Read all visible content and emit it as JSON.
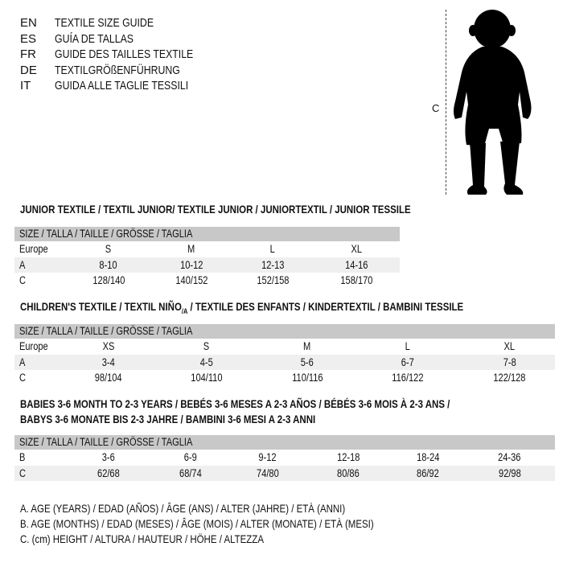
{
  "languages": [
    {
      "code": "EN",
      "text": "TEXTILE SIZE GUIDE"
    },
    {
      "code": "ES",
      "text": "GUÍA DE TALLAS"
    },
    {
      "code": "FR",
      "text": "GUIDE DES TAILLES TEXTILE"
    },
    {
      "code": "DE",
      "text": "TEXTILGRÖßENFÜHRUNG"
    },
    {
      "code": "IT",
      "text": "GUIDA ALLE TAGLIE TESSILI"
    }
  ],
  "figure": {
    "height_label": "C"
  },
  "junior": {
    "title": "JUNIOR TEXTILE / TEXTIL JUNIOR/ TEXTILE JUNIOR / JUNIORTEXTIL / JUNIOR TESSILE",
    "header": "SIZE / TALLA / TAILLE / GRÖSSE / TAGLIA",
    "rows": [
      [
        "Europe",
        "S",
        "M",
        "L",
        "XL"
      ],
      [
        "A",
        "8-10",
        "10-12",
        "12-13",
        "14-16"
      ],
      [
        "C",
        "128/140",
        "140/152",
        "152/158",
        "158/170"
      ]
    ]
  },
  "children": {
    "title_pre": "CHILDREN'S TEXTILE / TEXTIL NIÑO",
    "title_sub": "/A",
    "title_post": " / TEXTILE DES ENFANTS / KINDERTEXTIL / BAMBINI TESSILE",
    "header": "SIZE / TALLA / TAILLE / GRÖSSE / TAGLIA",
    "rows": [
      [
        "Europe",
        "XS",
        "S",
        "M",
        "L",
        "XL"
      ],
      [
        "A",
        "3-4",
        "4-5",
        "5-6",
        "6-7",
        "7-8"
      ],
      [
        "C",
        "98/104",
        "104/110",
        "110/116",
        "116/122",
        "122/128"
      ]
    ]
  },
  "babies": {
    "title_line1": "BABIES 3-6 MONTH TO 2-3 YEARS / BEBÉS 3-6 MESES A 2-3 AÑOS / BÉBÉS 3-6 MOIS À 2-3 ANS /",
    "title_line2": "BABYS 3-6 MONATE BIS 2-3 JAHRE / BAMBINI 3-6 MESI A 2-3 ANNI",
    "header": "SIZE / TALLA / TAILLE / GRÖSSE / TAGLIA",
    "rows": [
      [
        "B",
        "3-6",
        "6-9",
        "9-12",
        "12-18",
        "18-24",
        "24-36"
      ],
      [
        "C",
        "62/68",
        "68/74",
        "74/80",
        "80/86",
        "86/92",
        "92/98"
      ]
    ]
  },
  "legend": [
    "A. AGE (YEARS) / EDAD (AÑOS) / ÂGE (ANS) / ALTER (JAHRE) / ETÀ (ANNI)",
    "B. AGE (MONTHS) / EDAD (MESES) / ÂGE (MOIS) / ALTER (MONATE) / ETÀ (MESI)",
    "C. (cm) HEIGHT / ALTURA / HAUTEUR / HÖHE / ALTEZZA"
  ]
}
